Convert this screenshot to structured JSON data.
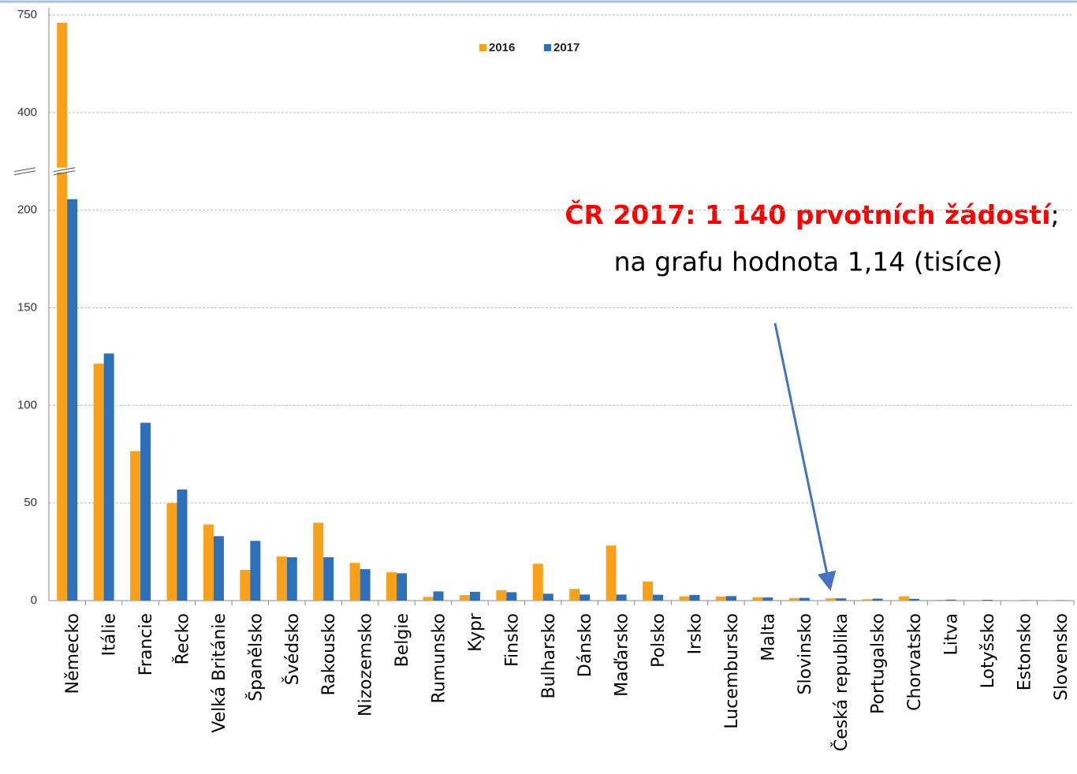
{
  "chart_data": {
    "type": "bar",
    "categories": [
      "Německo",
      "Itálie",
      "Francie",
      "Řecko",
      "Velká Británie",
      "Španělsko",
      "Švédsko",
      "Rakousko",
      "Nizozemsko",
      "Belgie",
      "Rumunsko",
      "Kypr",
      "Finsko",
      "Bulharsko",
      "Dánsko",
      "Maďarsko",
      "Polsko",
      "Irsko",
      "Lucembursko",
      "Malta",
      "Slovinsko",
      "Česká republika",
      "Portugalsko",
      "Chorvatsko",
      "Litva",
      "Lotyšsko",
      "Estonsko",
      "Slovensko"
    ],
    "series": [
      {
        "name": "2016",
        "color": "#f9a11b",
        "values": [
          722,
          121.4,
          76.6,
          50,
          39,
          15.7,
          22.6,
          39.9,
          19.3,
          14.5,
          1.9,
          2.8,
          5.3,
          18.9,
          6.0,
          28.2,
          9.8,
          2.2,
          2.1,
          1.7,
          1.3,
          1.2,
          0.7,
          2.2,
          0.4,
          0.3,
          0.1,
          0.1
        ]
      },
      {
        "name": "2017",
        "color": "#2e6fba",
        "values": [
          222.6,
          126.6,
          91.1,
          56.9,
          33,
          30.6,
          22.2,
          22.2,
          16.1,
          14.0,
          4.7,
          4.5,
          4.3,
          3.5,
          3.1,
          3.1,
          3.0,
          2.9,
          2.3,
          1.6,
          1.4,
          1.14,
          1.0,
          0.9,
          0.5,
          0.4,
          0.2,
          0.2
        ]
      }
    ],
    "ylim": [
      0,
      750
    ],
    "yticks": [
      0,
      50,
      100,
      150,
      200,
      400,
      750
    ],
    "axis_break": true,
    "grid": true,
    "legend": "top",
    "annotation": {
      "highlight": "ČR 2017: 1 140 prvotních žádostí",
      "separator": ";",
      "text": "na grafu hodnota 1,14 (tisíce)"
    }
  }
}
